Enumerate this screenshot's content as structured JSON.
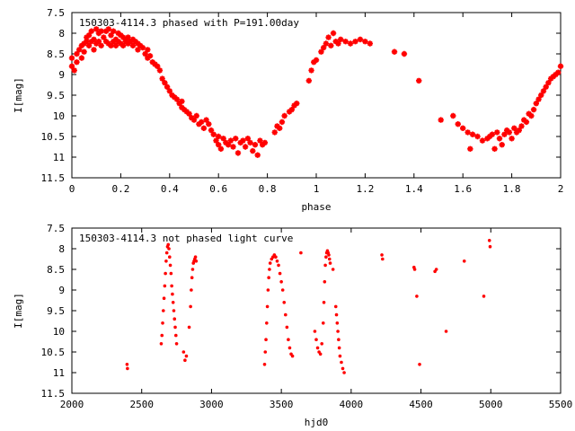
{
  "chart_data": [
    {
      "type": "scatter",
      "title": "150303-4114.3 phased with P=191.00day",
      "xlabel": "phase",
      "ylabel": "I[mag]",
      "xlim": [
        0,
        2
      ],
      "ylim": [
        11.5,
        7.5
      ],
      "y_inverted": true,
      "xticks": [
        "0",
        "0.2",
        "0.4",
        "0.6",
        "0.8",
        "1",
        "1.2",
        "1.4",
        "1.6",
        "1.8",
        "2"
      ],
      "yticks": [
        "7.5",
        "8",
        "8.5",
        "9",
        "9.5",
        "10",
        "10.5",
        "11",
        "11.5"
      ],
      "marker": "star",
      "color": "#ff0000",
      "points": [
        [
          0.0,
          8.8
        ],
        [
          0.0,
          8.6
        ],
        [
          0.01,
          8.9
        ],
        [
          0.02,
          8.7
        ],
        [
          0.02,
          8.5
        ],
        [
          0.03,
          8.4
        ],
        [
          0.04,
          8.6
        ],
        [
          0.04,
          8.3
        ],
        [
          0.05,
          8.25
        ],
        [
          0.05,
          8.45
        ],
        [
          0.06,
          8.2
        ],
        [
          0.06,
          8.1
        ],
        [
          0.07,
          8.3
        ],
        [
          0.07,
          8.05
        ],
        [
          0.08,
          8.2
        ],
        [
          0.08,
          7.95
        ],
        [
          0.09,
          8.15
        ],
        [
          0.09,
          8.4
        ],
        [
          0.1,
          7.9
        ],
        [
          0.1,
          8.25
        ],
        [
          0.11,
          8.2
        ],
        [
          0.11,
          8.0
        ],
        [
          0.12,
          8.3
        ],
        [
          0.12,
          7.95
        ],
        [
          0.13,
          8.1
        ],
        [
          0.14,
          7.95
        ],
        [
          0.14,
          8.2
        ],
        [
          0.15,
          8.25
        ],
        [
          0.15,
          7.9
        ],
        [
          0.16,
          8.3
        ],
        [
          0.16,
          8.05
        ],
        [
          0.17,
          8.2
        ],
        [
          0.17,
          7.95
        ],
        [
          0.18,
          8.15
        ],
        [
          0.18,
          8.3
        ],
        [
          0.19,
          8.0
        ],
        [
          0.19,
          8.2
        ],
        [
          0.2,
          8.25
        ],
        [
          0.2,
          8.05
        ],
        [
          0.21,
          8.1
        ],
        [
          0.21,
          8.3
        ],
        [
          0.22,
          8.15
        ],
        [
          0.22,
          8.2
        ],
        [
          0.23,
          8.25
        ],
        [
          0.23,
          8.1
        ],
        [
          0.24,
          8.2
        ],
        [
          0.25,
          8.3
        ],
        [
          0.25,
          8.15
        ],
        [
          0.26,
          8.2
        ],
        [
          0.27,
          8.25
        ],
        [
          0.27,
          8.4
        ],
        [
          0.28,
          8.3
        ],
        [
          0.29,
          8.35
        ],
        [
          0.3,
          8.5
        ],
        [
          0.31,
          8.4
        ],
        [
          0.31,
          8.6
        ],
        [
          0.32,
          8.55
        ],
        [
          0.33,
          8.7
        ],
        [
          0.34,
          8.75
        ],
        [
          0.35,
          8.8
        ],
        [
          0.36,
          8.9
        ],
        [
          0.37,
          9.1
        ],
        [
          0.38,
          9.2
        ],
        [
          0.39,
          9.3
        ],
        [
          0.4,
          9.4
        ],
        [
          0.41,
          9.5
        ],
        [
          0.42,
          9.55
        ],
        [
          0.43,
          9.6
        ],
        [
          0.44,
          9.7
        ],
        [
          0.45,
          9.8
        ],
        [
          0.45,
          9.65
        ],
        [
          0.46,
          9.85
        ],
        [
          0.47,
          9.9
        ],
        [
          0.48,
          9.95
        ],
        [
          0.49,
          10.05
        ],
        [
          0.5,
          10.1
        ],
        [
          0.51,
          10.0
        ],
        [
          0.52,
          10.2
        ],
        [
          0.53,
          10.15
        ],
        [
          0.54,
          10.3
        ],
        [
          0.55,
          10.1
        ],
        [
          0.56,
          10.2
        ],
        [
          0.57,
          10.35
        ],
        [
          0.58,
          10.45
        ],
        [
          0.59,
          10.6
        ],
        [
          0.6,
          10.7
        ],
        [
          0.6,
          10.5
        ],
        [
          0.61,
          10.8
        ],
        [
          0.62,
          10.55
        ],
        [
          0.63,
          10.65
        ],
        [
          0.64,
          10.7
        ],
        [
          0.65,
          10.6
        ],
        [
          0.66,
          10.75
        ],
        [
          0.67,
          10.55
        ],
        [
          0.68,
          10.9
        ],
        [
          0.69,
          10.65
        ],
        [
          0.7,
          10.6
        ],
        [
          0.71,
          10.75
        ],
        [
          0.72,
          10.55
        ],
        [
          0.73,
          10.65
        ],
        [
          0.74,
          10.85
        ],
        [
          0.75,
          10.7
        ],
        [
          0.76,
          10.95
        ],
        [
          0.77,
          10.6
        ],
        [
          0.78,
          10.7
        ],
        [
          0.79,
          10.65
        ],
        [
          0.83,
          10.4
        ],
        [
          0.84,
          10.25
        ],
        [
          0.85,
          10.3
        ],
        [
          0.86,
          10.15
        ],
        [
          0.87,
          10.0
        ],
        [
          0.89,
          9.9
        ],
        [
          0.9,
          9.85
        ],
        [
          0.91,
          9.75
        ],
        [
          0.92,
          9.7
        ],
        [
          0.97,
          9.15
        ],
        [
          0.98,
          8.9
        ],
        [
          0.99,
          8.7
        ],
        [
          1.0,
          8.65
        ],
        [
          1.02,
          8.45
        ],
        [
          1.03,
          8.35
        ],
        [
          1.04,
          8.25
        ],
        [
          1.05,
          8.1
        ],
        [
          1.06,
          8.3
        ],
        [
          1.07,
          8.0
        ],
        [
          1.08,
          8.2
        ],
        [
          1.09,
          8.25
        ],
        [
          1.1,
          8.15
        ],
        [
          1.12,
          8.2
        ],
        [
          1.14,
          8.25
        ],
        [
          1.16,
          8.2
        ],
        [
          1.18,
          8.15
        ],
        [
          1.2,
          8.2
        ],
        [
          1.22,
          8.25
        ],
        [
          1.32,
          8.45
        ],
        [
          1.36,
          8.5
        ],
        [
          1.42,
          9.15
        ],
        [
          1.51,
          10.1
        ],
        [
          1.56,
          10.0
        ],
        [
          1.58,
          10.2
        ],
        [
          1.6,
          10.3
        ],
        [
          1.62,
          10.4
        ],
        [
          1.63,
          10.8
        ],
        [
          1.64,
          10.45
        ],
        [
          1.66,
          10.5
        ],
        [
          1.68,
          10.6
        ],
        [
          1.7,
          10.55
        ],
        [
          1.71,
          10.5
        ],
        [
          1.72,
          10.45
        ],
        [
          1.73,
          10.8
        ],
        [
          1.74,
          10.4
        ],
        [
          1.75,
          10.55
        ],
        [
          1.76,
          10.7
        ],
        [
          1.77,
          10.45
        ],
        [
          1.78,
          10.35
        ],
        [
          1.79,
          10.4
        ],
        [
          1.8,
          10.55
        ],
        [
          1.81,
          10.3
        ],
        [
          1.82,
          10.4
        ],
        [
          1.83,
          10.35
        ],
        [
          1.84,
          10.25
        ],
        [
          1.85,
          10.1
        ],
        [
          1.86,
          10.15
        ],
        [
          1.87,
          9.95
        ],
        [
          1.88,
          10.0
        ],
        [
          1.89,
          9.85
        ],
        [
          1.9,
          9.7
        ],
        [
          1.91,
          9.6
        ],
        [
          1.92,
          9.5
        ],
        [
          1.93,
          9.4
        ],
        [
          1.94,
          9.3
        ],
        [
          1.95,
          9.2
        ],
        [
          1.96,
          9.1
        ],
        [
          1.97,
          9.05
        ],
        [
          1.98,
          9.0
        ],
        [
          1.99,
          8.95
        ],
        [
          2.0,
          8.8
        ]
      ]
    },
    {
      "type": "scatter",
      "title": "150303-4114.3 not phased light curve",
      "xlabel": "hjd0",
      "ylabel": "I[mag]",
      "xlim": [
        2000,
        5500
      ],
      "ylim": [
        11.5,
        7.5
      ],
      "y_inverted": true,
      "xticks": [
        "2000",
        "2500",
        "3000",
        "3500",
        "4000",
        "4500",
        "5000",
        "5500"
      ],
      "yticks": [
        "7.5",
        "8",
        "8.5",
        "9",
        "9.5",
        "10",
        "10.5",
        "11",
        "11.5"
      ],
      "marker": "dot",
      "color": "#ff0000",
      "points": [
        [
          2395,
          10.8
        ],
        [
          2398,
          10.9
        ],
        [
          2640,
          10.3
        ],
        [
          2645,
          10.1
        ],
        [
          2650,
          9.8
        ],
        [
          2655,
          9.5
        ],
        [
          2660,
          9.2
        ],
        [
          2665,
          8.9
        ],
        [
          2670,
          8.6
        ],
        [
          2675,
          8.3
        ],
        [
          2680,
          8.1
        ],
        [
          2685,
          7.95
        ],
        [
          2690,
          7.9
        ],
        [
          2695,
          8.0
        ],
        [
          2700,
          8.2
        ],
        [
          2705,
          8.4
        ],
        [
          2710,
          8.6
        ],
        [
          2715,
          8.9
        ],
        [
          2720,
          9.1
        ],
        [
          2725,
          9.3
        ],
        [
          2730,
          9.5
        ],
        [
          2735,
          9.7
        ],
        [
          2740,
          9.9
        ],
        [
          2745,
          10.1
        ],
        [
          2750,
          10.3
        ],
        [
          2800,
          10.5
        ],
        [
          2810,
          10.7
        ],
        [
          2820,
          10.6
        ],
        [
          2840,
          9.9
        ],
        [
          2850,
          9.4
        ],
        [
          2855,
          9.0
        ],
        [
          2860,
          8.7
        ],
        [
          2865,
          8.5
        ],
        [
          2870,
          8.35
        ],
        [
          2875,
          8.3
        ],
        [
          2880,
          8.25
        ],
        [
          2885,
          8.2
        ],
        [
          2890,
          8.3
        ],
        [
          3380,
          10.8
        ],
        [
          3385,
          10.5
        ],
        [
          3390,
          10.2
        ],
        [
          3395,
          9.8
        ],
        [
          3400,
          9.4
        ],
        [
          3405,
          9.0
        ],
        [
          3410,
          8.7
        ],
        [
          3415,
          8.5
        ],
        [
          3420,
          8.35
        ],
        [
          3430,
          8.25
        ],
        [
          3440,
          8.2
        ],
        [
          3450,
          8.15
        ],
        [
          3460,
          8.2
        ],
        [
          3470,
          8.3
        ],
        [
          3480,
          8.4
        ],
        [
          3490,
          8.6
        ],
        [
          3500,
          8.8
        ],
        [
          3510,
          9.0
        ],
        [
          3520,
          9.3
        ],
        [
          3530,
          9.6
        ],
        [
          3540,
          9.9
        ],
        [
          3550,
          10.2
        ],
        [
          3560,
          10.4
        ],
        [
          3570,
          10.55
        ],
        [
          3580,
          10.6
        ],
        [
          3640,
          8.1
        ],
        [
          3740,
          10.0
        ],
        [
          3750,
          10.2
        ],
        [
          3760,
          10.4
        ],
        [
          3770,
          10.5
        ],
        [
          3780,
          10.55
        ],
        [
          3790,
          10.3
        ],
        [
          3800,
          9.8
        ],
        [
          3805,
          9.3
        ],
        [
          3810,
          8.8
        ],
        [
          3815,
          8.4
        ],
        [
          3820,
          8.2
        ],
        [
          3825,
          8.1
        ],
        [
          3830,
          8.05
        ],
        [
          3835,
          8.1
        ],
        [
          3840,
          8.15
        ],
        [
          3845,
          8.25
        ],
        [
          3850,
          8.35
        ],
        [
          3870,
          8.5
        ],
        [
          3890,
          9.4
        ],
        [
          3895,
          9.6
        ],
        [
          3900,
          9.8
        ],
        [
          3905,
          10.0
        ],
        [
          3910,
          10.2
        ],
        [
          3915,
          10.4
        ],
        [
          3920,
          10.6
        ],
        [
          3930,
          10.75
        ],
        [
          3940,
          10.9
        ],
        [
          3950,
          11.0
        ],
        [
          4220,
          8.15
        ],
        [
          4225,
          8.25
        ],
        [
          4450,
          8.45
        ],
        [
          4455,
          8.5
        ],
        [
          4470,
          9.15
        ],
        [
          4490,
          10.8
        ],
        [
          4600,
          8.55
        ],
        [
          4610,
          8.5
        ],
        [
          4680,
          10.0
        ],
        [
          4810,
          8.3
        ],
        [
          4950,
          9.15
        ],
        [
          4990,
          7.8
        ],
        [
          4995,
          7.95
        ]
      ]
    }
  ]
}
